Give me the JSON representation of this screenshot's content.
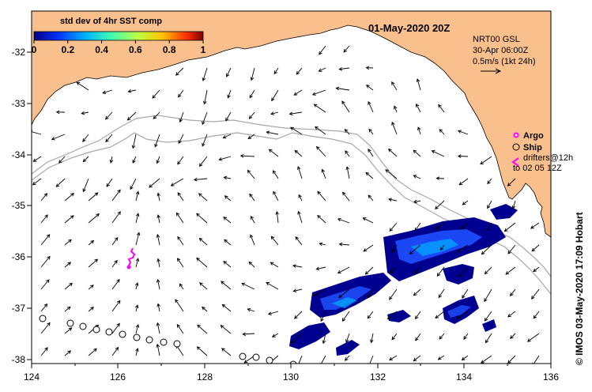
{
  "map": {
    "date_title": "01-May-2020 20Z",
    "colorbar": {
      "title": "std dev of 4hr SST comp",
      "ticks": [
        "0",
        "0.2",
        "0.4",
        "0.6",
        "0.8",
        "1"
      ],
      "colors": [
        "#000080",
        "#0030ff",
        "#00b0ff",
        "#40ffb0",
        "#c0ff40",
        "#ffc000",
        "#ff3000",
        "#800000"
      ]
    },
    "info": {
      "line1": "NRT00 GSL",
      "line2": "30-Apr 06:00Z",
      "line3": "0.5m/s (1kt 24h)"
    },
    "legend": {
      "argo": "Argo",
      "ship": "Ship",
      "drifters_line1": "drifters@12h",
      "drifters_line2": "to 02 05 12Z"
    },
    "credit": "© IMOS 03-May-2020 17:09 Hobart",
    "x_ticks": [
      "124",
      "126",
      "128",
      "130",
      "132",
      "134",
      "136"
    ],
    "y_ticks": [
      "-32",
      "-33",
      "-34",
      "-35",
      "-36",
      "-37",
      "-38"
    ],
    "colors": {
      "land": "#f9c08e",
      "bathy": "#a8a8a8",
      "argo": "#ff00ff",
      "sst_dark": "#000090",
      "sst_mid": "#1e50ff"
    }
  }
}
